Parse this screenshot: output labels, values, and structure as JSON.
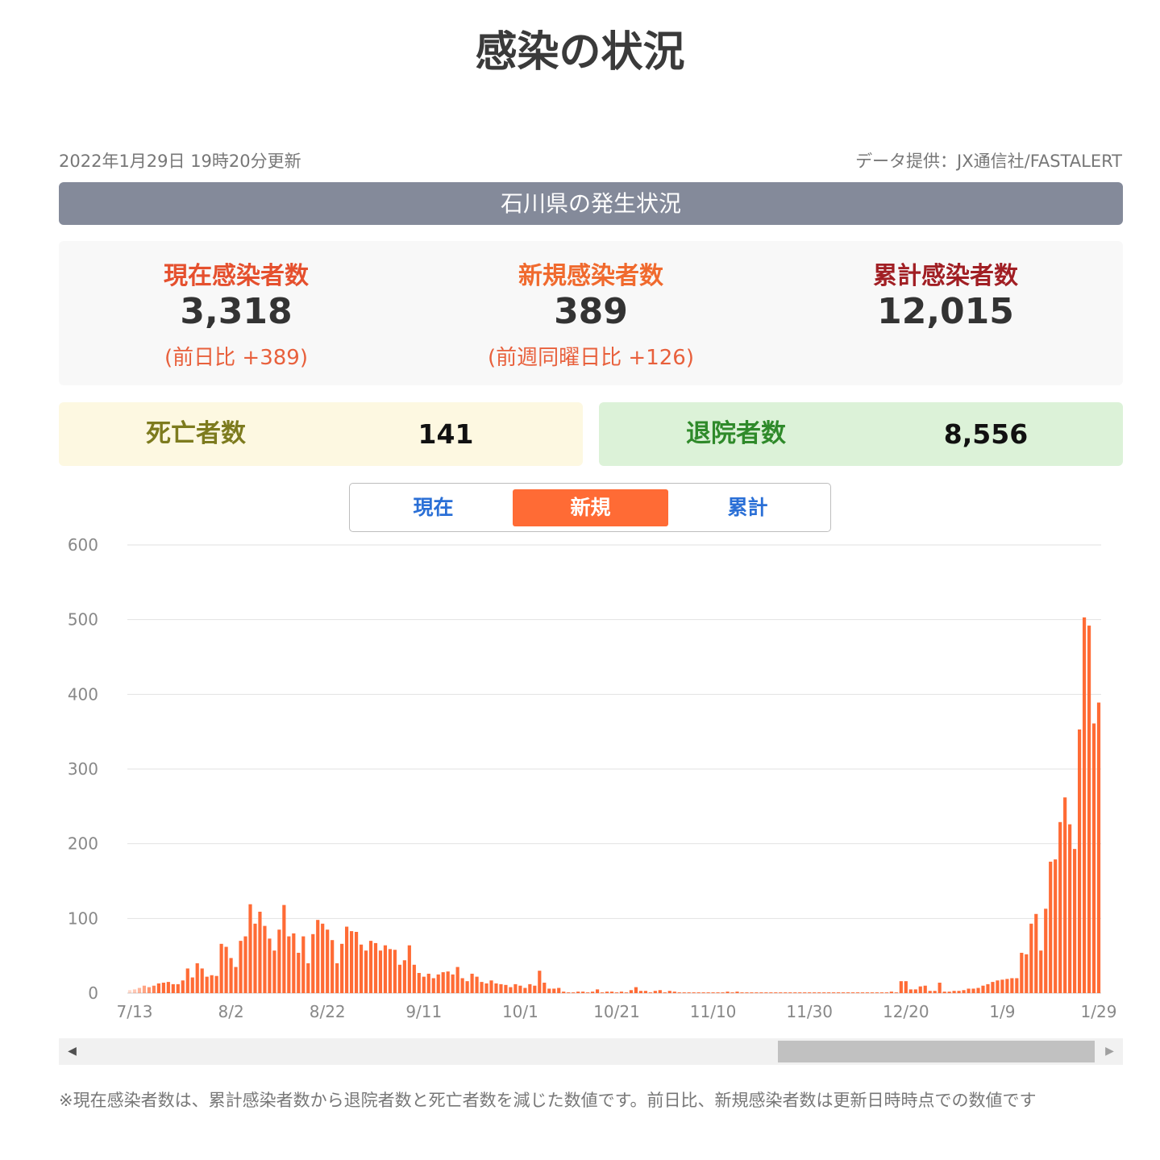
{
  "page": {
    "title": "感染の状況",
    "updated": "2022年1月29日 19時20分更新",
    "source": "データ提供：JX通信社/FASTALERT",
    "region_title": "石川県の発生状況"
  },
  "summary": {
    "current": {
      "label": "現在感染者数",
      "value": "3,318",
      "diff": "(前日比 +389)"
    },
    "new": {
      "label": "新規感染者数",
      "value": "389",
      "diff": "(前週同曜日比 +126)"
    },
    "total": {
      "label": "累計感染者数",
      "value": "12,015"
    }
  },
  "boxes": {
    "deaths": {
      "label": "死亡者数",
      "value": "141"
    },
    "recovered": {
      "label": "退院者数",
      "value": "8,556"
    }
  },
  "tabs": [
    {
      "label": "現在",
      "active": false
    },
    {
      "label": "新規",
      "active": true
    },
    {
      "label": "累計",
      "active": false
    }
  ],
  "colors": {
    "bar": "#ff6b35",
    "tab_active": "#ff6b35",
    "tab_text": "#2a6fd6",
    "region_bar": "#848a9a"
  },
  "footnote": "※現在感染者数は、累計感染者数から退院者数と死亡者数を減じた数値です。前日比、新規感染者数は更新日時時点での数値です",
  "chart_data": {
    "type": "bar",
    "title": "",
    "xlabel": "",
    "ylabel": "",
    "ylim": [
      0,
      600
    ],
    "yticks": [
      0,
      100,
      200,
      300,
      400,
      500,
      600
    ],
    "grid": true,
    "x_tick_labels": [
      "7/13",
      "8/2",
      "8/22",
      "9/11",
      "10/1",
      "10/21",
      "11/10",
      "11/30",
      "12/20",
      "1/9",
      "1/29"
    ],
    "series": [
      {
        "values": [
          4,
          5,
          7,
          10,
          8,
          10,
          13,
          14,
          15,
          12,
          12,
          17,
          33,
          21,
          40,
          33,
          22,
          24,
          23,
          66,
          62,
          47,
          35,
          70,
          76,
          119,
          93,
          109,
          90,
          73,
          57,
          85,
          118,
          76,
          80,
          54,
          76,
          40,
          79,
          98,
          93,
          85,
          71,
          40,
          66,
          89,
          83,
          82,
          65,
          57,
          70,
          67,
          57,
          64,
          59,
          58,
          38,
          44,
          64,
          38,
          27,
          22,
          26,
          20,
          25,
          28,
          29,
          25,
          35,
          20,
          16,
          26,
          22,
          15,
          13,
          17,
          13,
          12,
          11,
          8,
          12,
          10,
          7,
          12,
          10,
          30,
          14,
          6,
          6,
          7,
          2,
          1,
          1,
          2,
          2,
          1,
          2,
          5,
          1,
          2,
          2,
          1,
          2,
          1,
          4,
          8,
          3,
          3,
          1,
          3,
          4,
          1,
          3,
          2,
          1,
          1,
          1,
          1,
          1,
          1,
          1,
          1,
          1,
          1,
          2,
          1,
          2,
          1,
          1,
          1,
          1,
          1,
          1,
          1,
          1,
          1,
          1,
          1,
          1,
          1,
          1,
          1,
          1,
          1,
          1,
          1,
          1,
          1,
          1,
          1,
          1,
          1,
          1,
          1,
          1,
          1,
          1,
          1,
          2,
          1,
          16,
          16,
          5,
          5,
          9,
          10,
          3,
          3,
          14,
          2,
          2,
          3,
          3,
          4,
          6,
          6,
          7,
          10,
          12,
          15,
          17,
          18,
          19,
          20,
          20,
          54,
          52,
          93,
          106,
          57,
          113,
          176,
          179,
          229,
          262,
          226,
          193,
          353,
          503,
          492,
          361,
          389
        ]
      }
    ]
  }
}
